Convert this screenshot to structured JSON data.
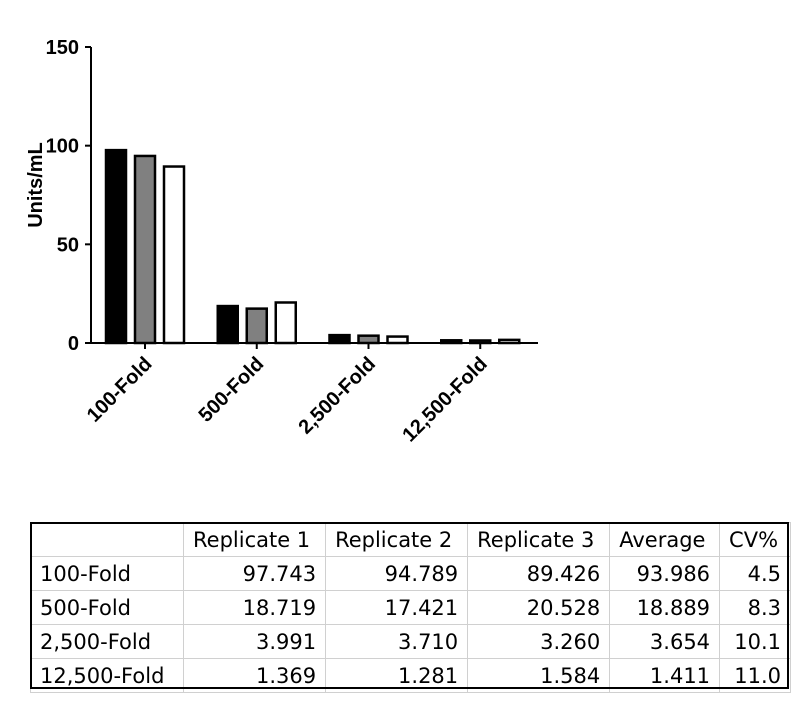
{
  "chart_data": {
    "type": "bar",
    "ylabel": "Units/mL",
    "xlabel": "",
    "ylim": [
      0,
      150
    ],
    "yticks": [
      0,
      50,
      100,
      150
    ],
    "categories": [
      "100-Fold",
      "500-Fold",
      "2,500-Fold",
      "12,500-Fold"
    ],
    "series": [
      {
        "values": [
          97.743,
          18.719,
          3.991,
          1.369
        ],
        "color": "#000000"
      },
      {
        "values": [
          94.789,
          17.421,
          3.71,
          1.281
        ],
        "color": "#808080"
      },
      {
        "values": [
          89.426,
          20.528,
          3.26,
          1.584
        ],
        "color": "#ffffff"
      }
    ],
    "grid": false,
    "legend": "none"
  },
  "table": {
    "headers": [
      "",
      "Replicate 1",
      "Replicate 2",
      "Replicate 3",
      "Average",
      "CV%"
    ],
    "rows": [
      [
        "100-Fold",
        "97.743",
        "94.789",
        "89.426",
        "93.986",
        "4.5"
      ],
      [
        "500-Fold",
        "18.719",
        "17.421",
        "20.528",
        "18.889",
        "8.3"
      ],
      [
        "2,500-Fold",
        "3.991",
        "3.710",
        "3.260",
        "3.654",
        "10.1"
      ],
      [
        "12,500-Fold",
        "1.369",
        "1.281",
        "1.584",
        "1.411",
        "11.0"
      ]
    ]
  }
}
